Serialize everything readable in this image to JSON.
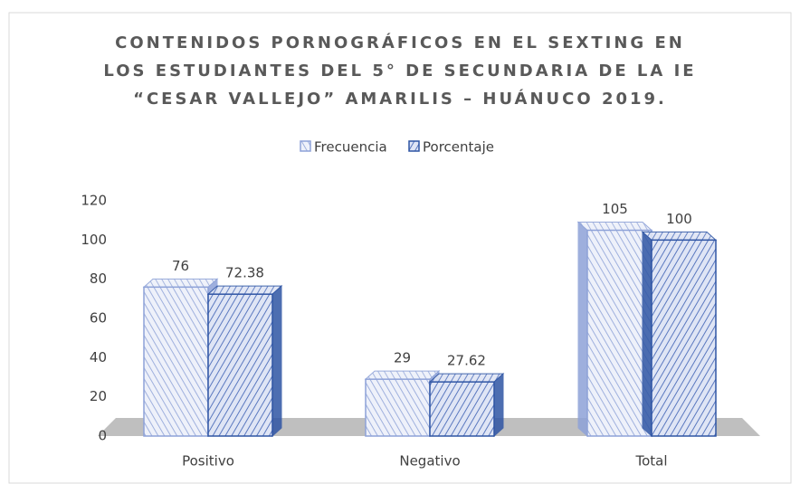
{
  "chart_data": {
    "type": "bar3d",
    "title": [
      "CONTENIDOS PORNOGRÁFICOS EN EL SEXTING EN",
      "LOS ESTUDIANTES DEL 5° DE SECUNDARIA DE LA IE",
      "“CESAR VALLEJO” AMARILIS – HUÁNUCO 2019."
    ],
    "categories": [
      "Positivo",
      "Negativo",
      "Total"
    ],
    "series": [
      {
        "name": "Frecuencia",
        "color": "#8ea2d8",
        "values": [
          76,
          29,
          105
        ]
      },
      {
        "name": "Porcentaje",
        "color": "#2f55a4",
        "values": [
          72.38,
          27.62,
          100
        ]
      }
    ],
    "ylim": [
      0,
      120
    ],
    "yticks": [
      0,
      20,
      40,
      60,
      80,
      100,
      120
    ],
    "legend": "top"
  }
}
